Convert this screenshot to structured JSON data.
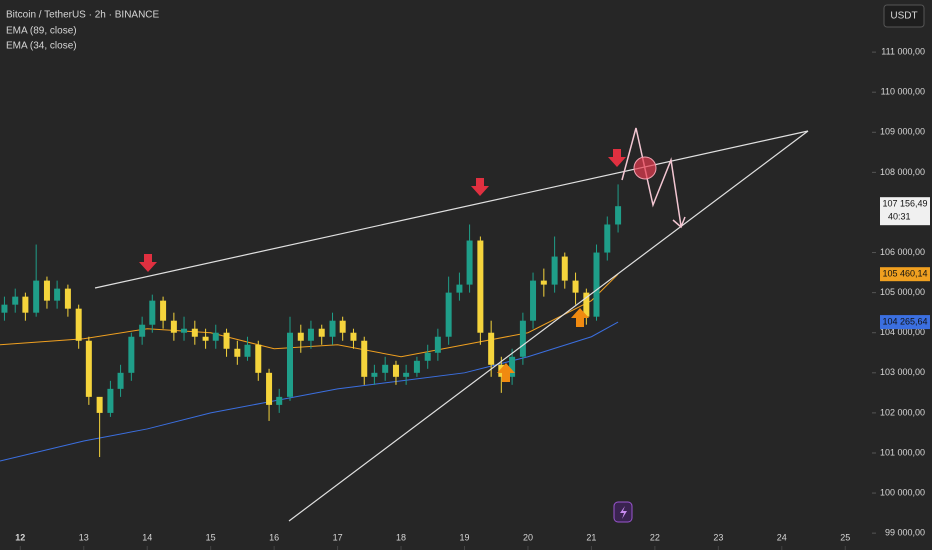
{
  "chart_data": {
    "type": "candlestick",
    "title": "Bitcoin / TetherUS · 2h · BINANCE",
    "currency_button": "USDT",
    "up_color": "#1f9e89",
    "down_color": "#f5d43c",
    "x": [
      11.75,
      11.92,
      12.08,
      12.25,
      12.42,
      12.58,
      12.75,
      12.92,
      13.08,
      13.25,
      13.42,
      13.58,
      13.75,
      13.92,
      14.08,
      14.25,
      14.42,
      14.58,
      14.75,
      14.92,
      15.08,
      15.25,
      15.42,
      15.58,
      15.75,
      15.92,
      16.08,
      16.25,
      16.42,
      16.58,
      16.75,
      16.92,
      17.08,
      17.25,
      17.42,
      17.58,
      17.75,
      17.92,
      18.08,
      18.25,
      18.42,
      18.58,
      18.75,
      18.92,
      19.08,
      19.25,
      19.42,
      19.58,
      19.75,
      19.92,
      20.08,
      20.25,
      20.42,
      20.58,
      20.75,
      20.92,
      21.08,
      21.25,
      21.42
    ],
    "open": [
      104500,
      104700,
      104900,
      104500,
      105300,
      104800,
      105100,
      104600,
      103800,
      102400,
      102000,
      102600,
      103000,
      103900,
      104200,
      104800,
      104300,
      104000,
      104100,
      103900,
      103800,
      104000,
      103600,
      103400,
      103700,
      103000,
      102200,
      102400,
      104000,
      103800,
      104100,
      103900,
      104300,
      104000,
      103800,
      102900,
      103000,
      103200,
      102900,
      103000,
      103300,
      103500,
      103900,
      105000,
      105200,
      106300,
      104000,
      103200,
      102900,
      103400,
      104300,
      105300,
      105200,
      105900,
      105300,
      105000,
      104400,
      106000,
      106700
    ],
    "high": [
      104900,
      105100,
      105000,
      106200,
      105400,
      105300,
      105200,
      104700,
      103900,
      102300,
      102800,
      103200,
      104000,
      104400,
      104950,
      104900,
      104500,
      104400,
      104300,
      104100,
      104200,
      104100,
      103800,
      103900,
      103800,
      103100,
      102600,
      104400,
      104200,
      104300,
      104200,
      104500,
      104400,
      104100,
      103900,
      103200,
      103400,
      103300,
      103200,
      103400,
      103700,
      104100,
      105400,
      105500,
      106700,
      106400,
      104300,
      103400,
      103600,
      104500,
      105500,
      105600,
      106400,
      106000,
      105500,
      105100,
      106200,
      106900,
      107700
    ],
    "low": [
      104300,
      104500,
      104300,
      104400,
      104600,
      104600,
      104400,
      103600,
      102200,
      100900,
      101900,
      102400,
      102800,
      103700,
      104000,
      104100,
      103800,
      103800,
      103700,
      103600,
      103600,
      103400,
      103200,
      103300,
      102800,
      101800,
      102000,
      102300,
      103500,
      103600,
      103700,
      103700,
      103800,
      103600,
      102700,
      102700,
      102800,
      102700,
      102700,
      102900,
      103100,
      103300,
      103700,
      104800,
      105000,
      103700,
      102900,
      102500,
      102700,
      103200,
      104100,
      104900,
      105000,
      105100,
      104700,
      104200,
      104300,
      105800,
      106500
    ],
    "close": [
      104700,
      104900,
      104500,
      105300,
      104800,
      105100,
      104600,
      103800,
      102400,
      102000,
      102600,
      103000,
      103900,
      104200,
      104800,
      104300,
      104000,
      104100,
      103900,
      103800,
      104000,
      103600,
      103400,
      103700,
      103000,
      102200,
      102400,
      104000,
      103800,
      104100,
      103900,
      104300,
      104000,
      103800,
      102900,
      103000,
      103200,
      102900,
      103000,
      103300,
      103500,
      103900,
      105000,
      105200,
      106300,
      104000,
      103200,
      102900,
      103400,
      104300,
      105300,
      105200,
      105900,
      105300,
      105000,
      104400,
      106000,
      106700,
      107156.49
    ],
    "overlays": [
      {
        "name": "EMA (89, close)",
        "color": "#3b6fe0",
        "x": [
          11.68,
          13,
          14,
          15,
          16,
          17,
          18,
          19,
          20,
          21,
          21.42
        ],
        "values": [
          100800,
          101300,
          101600,
          102000,
          102300,
          102600,
          102800,
          103000,
          103400,
          103900,
          104265.64
        ],
        "last_label": "104 265,64"
      },
      {
        "name": "EMA (34, close)",
        "color": "#f0a020",
        "x": [
          11.68,
          13,
          14,
          15,
          16,
          17,
          18,
          19,
          20,
          21,
          21.42
        ],
        "values": [
          103700,
          103850,
          104100,
          104000,
          103600,
          103700,
          103400,
          103700,
          104000,
          104800,
          105460.14
        ],
        "last_label": "105 460,14"
      }
    ],
    "last_price_label": "107 156,49",
    "countdown": "40:31",
    "xlim": [
      11.68,
      25.39
    ],
    "xticks": [
      12,
      13,
      14,
      15,
      16,
      17,
      18,
      19,
      20,
      21,
      22,
      23,
      24,
      25
    ],
    "ylim": [
      98580,
      112300
    ],
    "yticks": [
      {
        "value": 99000,
        "label": "99 000,00"
      },
      {
        "value": 100000,
        "label": "100 000,00"
      },
      {
        "value": 101000,
        "label": "101 000,00"
      },
      {
        "value": 102000,
        "label": "102 000,00"
      },
      {
        "value": 103000,
        "label": "103 000,00"
      },
      {
        "value": 104000,
        "label": "104 000,00"
      },
      {
        "value": 105000,
        "label": "105 000,00"
      },
      {
        "value": 106000,
        "label": "106 000,00"
      },
      {
        "value": 108000,
        "label": "108 000,00"
      },
      {
        "value": 109000,
        "label": "109 000,00"
      },
      {
        "value": 110000,
        "label": "110 000,00"
      },
      {
        "value": 111000,
        "label": "111 000,00"
      }
    ],
    "grid": false
  }
}
